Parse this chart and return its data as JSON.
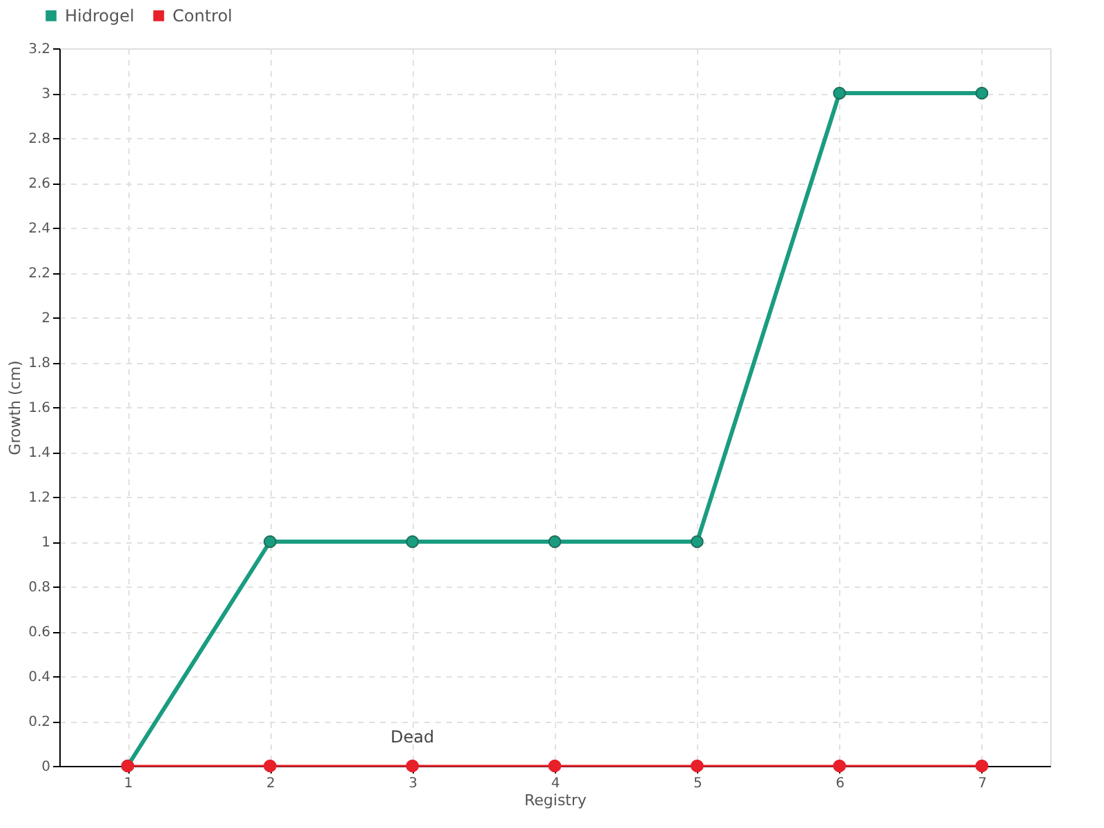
{
  "chart_data": {
    "type": "line",
    "xlabel": "Registry",
    "ylabel": "Growth (cm)",
    "categories": [
      "1",
      "2",
      "3",
      "4",
      "5",
      "6",
      "7"
    ],
    "series": [
      {
        "name": "Hidrogel",
        "color": "#1a9c80",
        "values": [
          0,
          1,
          1,
          1,
          1,
          3,
          3
        ]
      },
      {
        "name": "Control",
        "color": "#e8202a",
        "values": [
          0,
          0,
          0,
          0,
          0,
          0,
          0
        ]
      }
    ],
    "ylim": [
      0,
      3.2
    ],
    "yticks": [
      0,
      0.2,
      0.4,
      0.6,
      0.8,
      1,
      1.2,
      1.4,
      1.6,
      1.8,
      2,
      2.2,
      2.4,
      2.6,
      2.8,
      3,
      3.2
    ],
    "grid": true,
    "legend": "top left",
    "marker": "circle",
    "line_style": "solid",
    "annotations": [
      {
        "text": "Dead",
        "x": "3",
        "y": 0
      }
    ]
  }
}
